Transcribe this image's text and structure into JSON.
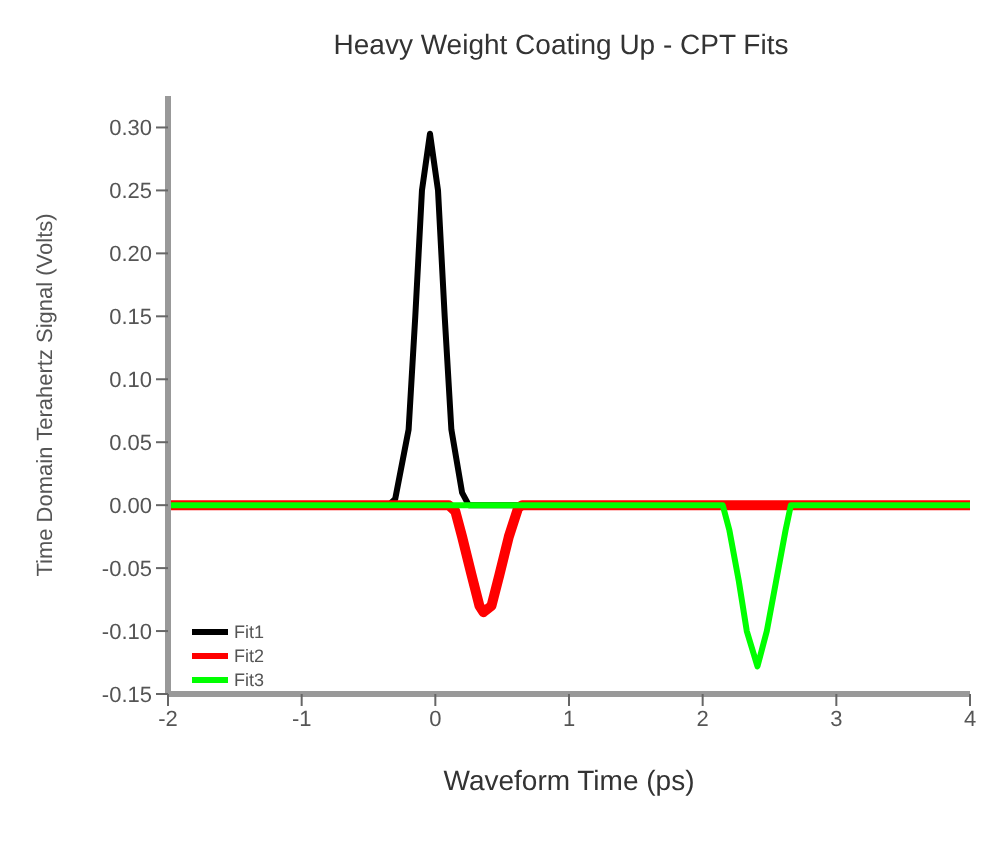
{
  "chart_data": {
    "type": "line",
    "title": "Heavy Weight Coating Up - CPT Fits",
    "xlabel": "Waveform Time (ps)",
    "ylabel": "Time Domain Terahertz Signal (Volts)",
    "series": [
      {
        "name": "Fit1",
        "color": "#000000",
        "x": [
          -2,
          -0.35,
          -0.3,
          -0.2,
          -0.15,
          -0.1,
          -0.04,
          0.02,
          0.07,
          0.12,
          0.2,
          0.25,
          4
        ],
        "values": [
          0,
          0,
          0.005,
          0.06,
          0.15,
          0.25,
          0.295,
          0.25,
          0.15,
          0.06,
          0.01,
          0,
          0
        ]
      },
      {
        "name": "Fit2",
        "color": "#ff0000",
        "x": [
          -2,
          0.1,
          0.15,
          0.2,
          0.27,
          0.33,
          0.36,
          0.42,
          0.48,
          0.55,
          0.62,
          0.65,
          4
        ],
        "values": [
          0,
          0,
          -0.005,
          -0.025,
          -0.055,
          -0.08,
          -0.085,
          -0.08,
          -0.055,
          -0.025,
          -0.002,
          0,
          0
        ]
      },
      {
        "name": "Fit3",
        "color": "#00ff00",
        "x": [
          -2,
          2.15,
          2.2,
          2.27,
          2.33,
          2.41,
          2.48,
          2.55,
          2.62,
          2.66,
          4
        ],
        "values": [
          0,
          0,
          -0.02,
          -0.06,
          -0.1,
          -0.128,
          -0.1,
          -0.06,
          -0.02,
          0,
          0
        ]
      }
    ],
    "xlim": [
      -2,
      4
    ],
    "xticks": [
      -2,
      -1,
      0,
      1,
      2,
      3,
      4
    ],
    "ylim": [
      -0.15,
      0.325
    ],
    "yticks": [
      {
        "value": -0.15,
        "label": "-0.15"
      },
      {
        "value": -0.1,
        "label": "-0.10"
      },
      {
        "value": -0.05,
        "label": "-0.05"
      },
      {
        "value": 0,
        "label": "0.00"
      },
      {
        "value": 0.05,
        "label": "0.05"
      },
      {
        "value": 0.1,
        "label": "0.10"
      },
      {
        "value": 0.15,
        "label": "0.15"
      },
      {
        "value": 0.2,
        "label": "0.20"
      },
      {
        "value": 0.25,
        "label": "0.25"
      },
      {
        "value": 0.3,
        "label": "0.30"
      }
    ],
    "grid": false,
    "legend": "bottom left",
    "marker": "none",
    "line_style": "solid"
  }
}
